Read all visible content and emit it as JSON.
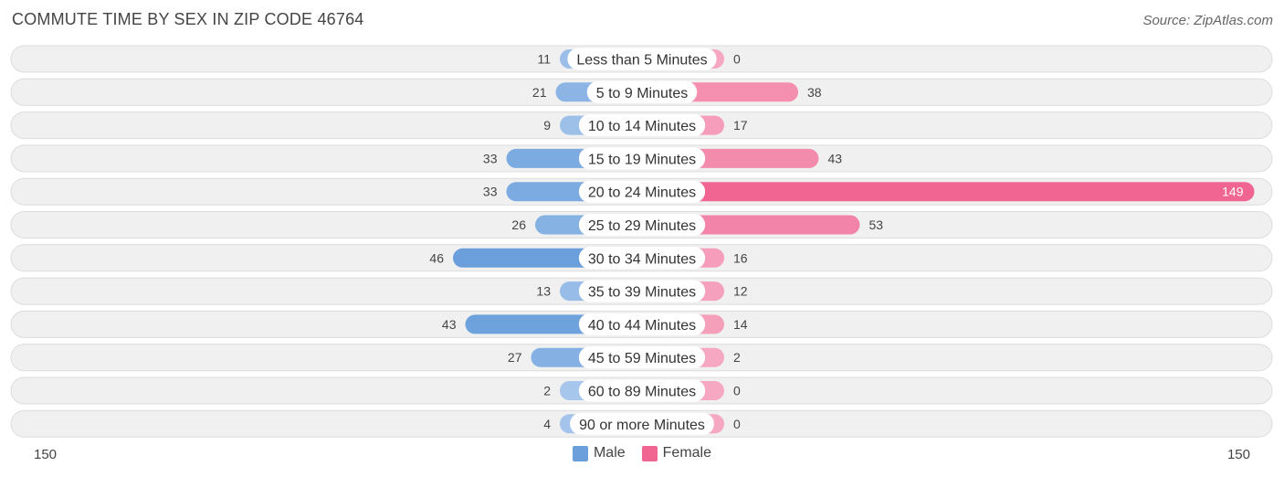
{
  "header": {
    "title": "COMMUTE TIME BY SEX IN ZIP CODE 46764",
    "source": "Source: ZipAtlas.com"
  },
  "legend": {
    "male_label": "Male",
    "female_label": "Female"
  },
  "axis": {
    "left_label": "150",
    "right_label": "150"
  },
  "colors": {
    "male_dark": "#6a9fdc",
    "male_light": "#a9c8ec",
    "female_dark": "#f06592",
    "female_light": "#f6a8c2",
    "row_bg": "#f0f0f0",
    "row_border": "#dcdcdc"
  },
  "chart_data": {
    "type": "bar",
    "orientation": "horizontal-diverging",
    "title": "COMMUTE TIME BY SEX IN ZIP CODE 46764",
    "categories": [
      "Less than 5 Minutes",
      "5 to 9 Minutes",
      "10 to 14 Minutes",
      "15 to 19 Minutes",
      "20 to 24 Minutes",
      "25 to 29 Minutes",
      "30 to 34 Minutes",
      "35 to 39 Minutes",
      "40 to 44 Minutes",
      "45 to 59 Minutes",
      "60 to 89 Minutes",
      "90 or more Minutes"
    ],
    "series": [
      {
        "name": "Male",
        "values": [
          11,
          21,
          9,
          33,
          33,
          26,
          46,
          13,
          43,
          27,
          2,
          4
        ]
      },
      {
        "name": "Female",
        "values": [
          0,
          38,
          17,
          43,
          149,
          53,
          16,
          12,
          14,
          2,
          0,
          0
        ]
      }
    ],
    "xlim": [
      -150,
      150
    ],
    "legend_position": "bottom-center"
  }
}
